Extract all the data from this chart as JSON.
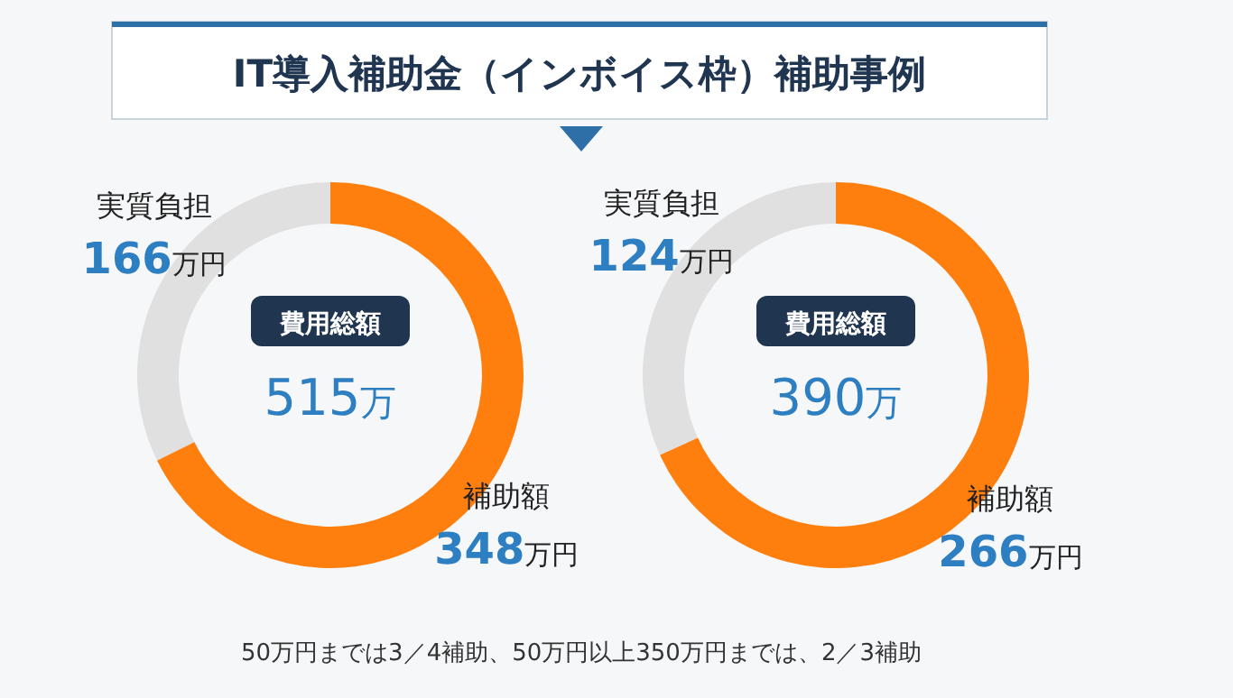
{
  "chart_data": [
    {
      "type": "other",
      "title": "IT導入補助金（インボイス枠）補助事例",
      "annotations": [
        "50万円までは3／4補助、50万円以上350万円までは、2／3補助"
      ]
    },
    {
      "type": "donut",
      "categories": [
        "実質負担",
        "補助額"
      ],
      "values": [
        166,
        348
      ],
      "colors": [
        "#e0e0e0",
        "#ff7f0e"
      ],
      "value_labels": [
        "166万円",
        "348万円"
      ],
      "annotations": [
        "費用総額",
        "515万"
      ]
    },
    {
      "type": "donut",
      "categories": [
        "実質負担",
        "補助額"
      ],
      "values": [
        124,
        266
      ],
      "colors": [
        "#e0e0e0",
        "#ff7f0e"
      ],
      "value_labels": [
        "124万円",
        "266万円"
      ],
      "annotations": [
        "費用総額",
        "390万"
      ]
    }
  ]
}
